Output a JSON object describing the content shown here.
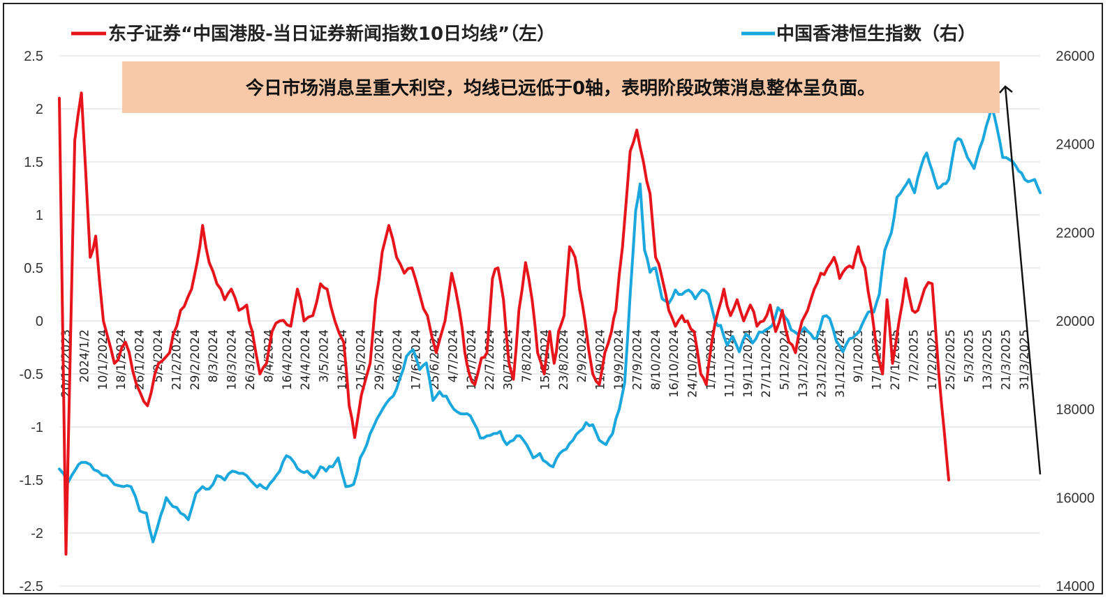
{
  "chart_data": {
    "type": "line",
    "legend": {
      "placement": "top",
      "items": [
        {
          "label": "东子证券“中国港股-当日证券新闻指数10日均线”（左）",
          "color": "#e8141b"
        },
        {
          "label": "中国香港恒生指数（右）",
          "color": "#1aa7de"
        }
      ]
    },
    "annotation": "今日市场消息呈重大利空，均线已远低于0轴，表明阶段政策消息整体呈负面。",
    "annotation_bg": "#f7c9a8",
    "grid": true,
    "y_left": {
      "range": [
        -2.5,
        2.5
      ],
      "ticks": [
        2.5,
        2,
        1.5,
        1,
        0.5,
        0,
        -0.5,
        -1,
        -1.5,
        -2,
        -2.5
      ],
      "tick_labels": [
        "2.5",
        "2",
        "1.5",
        "1",
        "0.5",
        "0",
        "-0.5",
        "-1",
        "-1.5",
        "-2",
        "-2.5"
      ]
    },
    "y_right": {
      "range": [
        14000,
        26000
      ],
      "ticks": [
        26000,
        24000,
        22000,
        20000,
        18000,
        16000,
        14000
      ],
      "tick_labels": [
        "26000",
        "24000",
        "22000",
        "20000",
        "18000",
        "16000",
        "14000"
      ]
    },
    "x_tick_labels": [
      "20/12/2023",
      "2024/1/2",
      "10/1/2024",
      "18/1/2024",
      "26/1/2024",
      "5/2/2024",
      "21/2/2024",
      "29/2/2024",
      "8/3/2024",
      "18/3/2024",
      "26/3/2024",
      "8/4/2024",
      "16/4/2024",
      "24/4/2024",
      "3/5/2024",
      "13/5/2024",
      "21/5/2024",
      "29/5/2024",
      "6/6/2024",
      "17/6/2024",
      "25/6/2024",
      "4/7/2024",
      "12/7/2024",
      "22/7/2024",
      "30/7/2024",
      "7/8/2024",
      "15/8/2024",
      "23/8/2024",
      "2/9/2024",
      "11/9/2024",
      "19/9/2024",
      "27/9/2024",
      "8/10/2024",
      "16/10/2024",
      "24/10/2024",
      "1/11/2024",
      "11/11/2024",
      "19/11/2024",
      "27/11/2024",
      "5/12/2024",
      "13/12/2024",
      "23/12/2024",
      "31/12/2024",
      "9/1/2025",
      "17/1/2025",
      "27/1/2025",
      "7/2/2025",
      "17/2/2025",
      "25/2/2025",
      "5/3/2025",
      "13/3/2025",
      "21/3/2025",
      "31/3/2025"
    ],
    "series": [
      {
        "name": "东子证券“中国港股-当日证券新闻指数10日均线”（左）",
        "axis": "left",
        "color": "#e8141b",
        "anchors": [
          [
            0,
            2.1
          ],
          [
            0.6,
            -2.2
          ],
          [
            1.4,
            1.7
          ],
          [
            2,
            2.15
          ],
          [
            2.8,
            0.6
          ],
          [
            3.3,
            0.8
          ],
          [
            4,
            0.0
          ],
          [
            5,
            -0.4
          ],
          [
            6,
            -0.2
          ],
          [
            7,
            -0.6
          ],
          [
            8,
            -0.8
          ],
          [
            9,
            -0.4
          ],
          [
            10,
            -0.3
          ],
          [
            11,
            0.1
          ],
          [
            12,
            0.3
          ],
          [
            12.5,
            0.55
          ],
          [
            13,
            0.9
          ],
          [
            13.6,
            0.55
          ],
          [
            14.3,
            0.35
          ],
          [
            15,
            0.2
          ],
          [
            15.6,
            0.3
          ],
          [
            16.3,
            0.1
          ],
          [
            17,
            0.15
          ],
          [
            17.5,
            -0.1
          ],
          [
            18.2,
            -0.5
          ],
          [
            18.8,
            -0.4
          ],
          [
            19.3,
            -0.1
          ],
          [
            20,
            0.0
          ],
          [
            21,
            -0.05
          ],
          [
            21.6,
            0.3
          ],
          [
            22.2,
            0.0
          ],
          [
            23,
            0.05
          ],
          [
            23.7,
            0.35
          ],
          [
            24.3,
            0.3
          ],
          [
            25,
            0.0
          ],
          [
            25.8,
            -0.2
          ],
          [
            26.3,
            -0.8
          ],
          [
            26.8,
            -1.1
          ],
          [
            27.4,
            -0.7
          ],
          [
            28.2,
            -0.4
          ],
          [
            28.7,
            0.2
          ],
          [
            29.3,
            0.65
          ],
          [
            29.9,
            0.9
          ],
          [
            30.6,
            0.6
          ],
          [
            31.3,
            0.45
          ],
          [
            32,
            0.5
          ],
          [
            32.7,
            0.25
          ],
          [
            33.4,
            0.05
          ],
          [
            34.2,
            -0.3
          ],
          [
            35,
            0.0
          ],
          [
            35.6,
            0.45
          ],
          [
            36.3,
            0.1
          ],
          [
            36.8,
            -0.3
          ],
          [
            37.2,
            -0.5
          ],
          [
            37.7,
            -0.6
          ],
          [
            38.3,
            -0.35
          ],
          [
            38.8,
            -0.3
          ],
          [
            39.3,
            0.4
          ],
          [
            39.8,
            0.5
          ],
          [
            40.3,
            0.2
          ],
          [
            40.8,
            -0.4
          ],
          [
            41.2,
            -0.55
          ],
          [
            41.7,
            0.1
          ],
          [
            42.3,
            0.55
          ],
          [
            42.9,
            0.2
          ],
          [
            43.4,
            -0.3
          ],
          [
            44,
            -0.5
          ],
          [
            44.5,
            -0.1
          ],
          [
            44.9,
            -0.4
          ],
          [
            45.3,
            -0.1
          ],
          [
            45.8,
            0.05
          ],
          [
            46.3,
            0.7
          ],
          [
            46.8,
            0.6
          ],
          [
            47.2,
            0.3
          ],
          [
            47.7,
            0.0
          ],
          [
            48.4,
            -0.5
          ],
          [
            49,
            -0.6
          ],
          [
            49.5,
            -0.3
          ],
          [
            50.1,
            -0.1
          ],
          [
            50.5,
            0.1
          ],
          [
            51.1,
            0.7
          ],
          [
            51.8,
            1.6
          ],
          [
            52.4,
            1.8
          ],
          [
            53,
            1.5
          ],
          [
            53.6,
            1.2
          ],
          [
            54.1,
            0.6
          ],
          [
            54.7,
            0.4
          ],
          [
            55.3,
            0.1
          ],
          [
            55.9,
            -0.05
          ],
          [
            56.5,
            0.05
          ],
          [
            57,
            0.0
          ],
          [
            57.6,
            -0.1
          ],
          [
            58.2,
            -0.5
          ],
          [
            58.7,
            -0.6
          ],
          [
            59.2,
            -0.2
          ],
          [
            59.8,
            0.1
          ],
          [
            60.3,
            0.3
          ],
          [
            60.9,
            0.05
          ],
          [
            61.5,
            0.2
          ],
          [
            62.1,
            0.0
          ],
          [
            62.7,
            0.15
          ],
          [
            63.3,
            -0.05
          ],
          [
            63.9,
            0.0
          ],
          [
            64.5,
            0.15
          ],
          [
            65,
            -0.1
          ],
          [
            65.6,
            0.1
          ],
          [
            66.2,
            -0.2
          ],
          [
            66.8,
            -0.3
          ],
          [
            67.4,
            0.0
          ],
          [
            67.9,
            0.1
          ],
          [
            68.5,
            0.3
          ],
          [
            69.1,
            0.45
          ],
          [
            69.7,
            0.5
          ],
          [
            70.3,
            0.6
          ],
          [
            70.8,
            0.4
          ],
          [
            71.4,
            0.5
          ],
          [
            72,
            0.5
          ],
          [
            72.5,
            0.7
          ],
          [
            73.1,
            0.5
          ],
          [
            73.7,
            0.1
          ],
          [
            74.2,
            -0.3
          ],
          [
            74.7,
            -0.5
          ],
          [
            75.1,
            0.2
          ],
          [
            75.6,
            -0.4
          ],
          [
            76.2,
            0.0
          ],
          [
            76.8,
            0.4
          ],
          [
            77.4,
            0.1
          ],
          [
            77.9,
            0.1
          ],
          [
            78.5,
            0.3
          ],
          [
            79.2,
            0.35
          ],
          [
            79.8,
            -0.5
          ],
          [
            80.3,
            -1.05
          ],
          [
            80.7,
            -1.5
          ]
        ]
      },
      {
        "name": "中国香港恒生指数（右）",
        "axis": "right",
        "color": "#1aa7de",
        "anchors": [
          [
            0,
            16650
          ],
          [
            0.8,
            16350
          ],
          [
            1.5,
            16650
          ],
          [
            2,
            16800
          ],
          [
            2.8,
            16750
          ],
          [
            3.5,
            16600
          ],
          [
            4.3,
            16500
          ],
          [
            5,
            16300
          ],
          [
            5.8,
            16250
          ],
          [
            6.5,
            16250
          ],
          [
            7.3,
            15700
          ],
          [
            7.9,
            15650
          ],
          [
            8.5,
            15000
          ],
          [
            9.2,
            15600
          ],
          [
            9.7,
            16000
          ],
          [
            10.3,
            15800
          ],
          [
            11,
            15650
          ],
          [
            11.7,
            15500
          ],
          [
            12.4,
            16100
          ],
          [
            13,
            16250
          ],
          [
            13.6,
            16200
          ],
          [
            14.3,
            16500
          ],
          [
            15,
            16400
          ],
          [
            15.7,
            16600
          ],
          [
            16.3,
            16550
          ],
          [
            17,
            16500
          ],
          [
            17.7,
            16300
          ],
          [
            18.2,
            16300
          ],
          [
            18.8,
            16200
          ],
          [
            19.4,
            16400
          ],
          [
            20,
            16600
          ],
          [
            20.6,
            16950
          ],
          [
            21.3,
            16800
          ],
          [
            21.9,
            16600
          ],
          [
            22.5,
            16600
          ],
          [
            23.1,
            16450
          ],
          [
            23.7,
            16700
          ],
          [
            24.2,
            16600
          ],
          [
            24.8,
            16700
          ],
          [
            25.3,
            16900
          ],
          [
            26,
            16250
          ],
          [
            26.7,
            16300
          ],
          [
            27.3,
            16900
          ],
          [
            27.9,
            17200
          ],
          [
            28.5,
            17600
          ],
          [
            29.1,
            17900
          ],
          [
            29.7,
            18150
          ],
          [
            30.3,
            18300
          ],
          [
            30.9,
            18700
          ],
          [
            31.5,
            19200
          ],
          [
            32.1,
            19350
          ],
          [
            32.7,
            18900
          ],
          [
            33.3,
            19050
          ],
          [
            33.9,
            18200
          ],
          [
            34.5,
            18400
          ],
          [
            35.1,
            18300
          ],
          [
            35.8,
            18000
          ],
          [
            36.4,
            17900
          ],
          [
            37,
            17900
          ],
          [
            37.6,
            17700
          ],
          [
            38.2,
            17350
          ],
          [
            38.8,
            17400
          ],
          [
            39.4,
            17450
          ],
          [
            40,
            17500
          ],
          [
            40.6,
            17200
          ],
          [
            41.2,
            17300
          ],
          [
            41.8,
            17400
          ],
          [
            42.4,
            17200
          ],
          [
            43,
            16900
          ],
          [
            43.6,
            17000
          ],
          [
            44.2,
            16800
          ],
          [
            44.8,
            16700
          ],
          [
            45.4,
            17000
          ],
          [
            46,
            17100
          ],
          [
            46.6,
            17300
          ],
          [
            47.2,
            17500
          ],
          [
            47.8,
            17700
          ],
          [
            48.4,
            17650
          ],
          [
            49,
            17300
          ],
          [
            49.6,
            17200
          ],
          [
            50.2,
            17450
          ],
          [
            50.8,
            18000
          ],
          [
            51.3,
            18600
          ],
          [
            51.8,
            20600
          ],
          [
            52.3,
            22500
          ],
          [
            52.7,
            23100
          ],
          [
            53.1,
            21600
          ],
          [
            53.6,
            21100
          ],
          [
            54.1,
            21200
          ],
          [
            54.7,
            20500
          ],
          [
            55.3,
            20400
          ],
          [
            55.9,
            20700
          ],
          [
            56.5,
            20600
          ],
          [
            57.1,
            20700
          ],
          [
            57.7,
            20500
          ],
          [
            58.3,
            20700
          ],
          [
            58.9,
            20600
          ],
          [
            59.5,
            20000
          ],
          [
            60,
            19900
          ],
          [
            60.6,
            19450
          ],
          [
            61.1,
            19650
          ],
          [
            61.7,
            19300
          ],
          [
            62.3,
            19700
          ],
          [
            62.9,
            19500
          ],
          [
            63.5,
            19750
          ],
          [
            64.1,
            19800
          ],
          [
            64.7,
            19900
          ],
          [
            65.2,
            20300
          ],
          [
            65.8,
            20100
          ],
          [
            66.4,
            19800
          ],
          [
            67,
            19700
          ],
          [
            67.6,
            19850
          ],
          [
            68.2,
            19700
          ],
          [
            68.7,
            19600
          ],
          [
            69.3,
            20100
          ],
          [
            69.9,
            20050
          ],
          [
            70.5,
            19550
          ],
          [
            71.1,
            19300
          ],
          [
            71.7,
            19600
          ],
          [
            72.3,
            19700
          ],
          [
            72.8,
            19900
          ],
          [
            73.4,
            20200
          ],
          [
            73.9,
            20200
          ],
          [
            74.4,
            20600
          ],
          [
            74.9,
            21600
          ],
          [
            75.5,
            22000
          ],
          [
            76,
            22800
          ],
          [
            76.6,
            23000
          ],
          [
            77.1,
            23200
          ],
          [
            77.6,
            22900
          ],
          [
            78.2,
            23500
          ],
          [
            78.7,
            23800
          ],
          [
            79.2,
            23400
          ],
          [
            79.7,
            23000
          ],
          [
            80.2,
            23100
          ],
          [
            80.7,
            23200
          ],
          [
            81.3,
            24050
          ],
          [
            81.8,
            24100
          ],
          [
            82.4,
            23700
          ],
          [
            83,
            23450
          ],
          [
            83.5,
            23900
          ],
          [
            84.1,
            24400
          ],
          [
            84.6,
            24850
          ],
          [
            85.1,
            24350
          ],
          [
            85.6,
            23700
          ],
          [
            86.2,
            23650
          ],
          [
            86.8,
            23500
          ],
          [
            87.3,
            23350
          ],
          [
            87.9,
            23150
          ],
          [
            88.5,
            23200
          ],
          [
            89,
            22900
          ]
        ]
      }
    ]
  }
}
